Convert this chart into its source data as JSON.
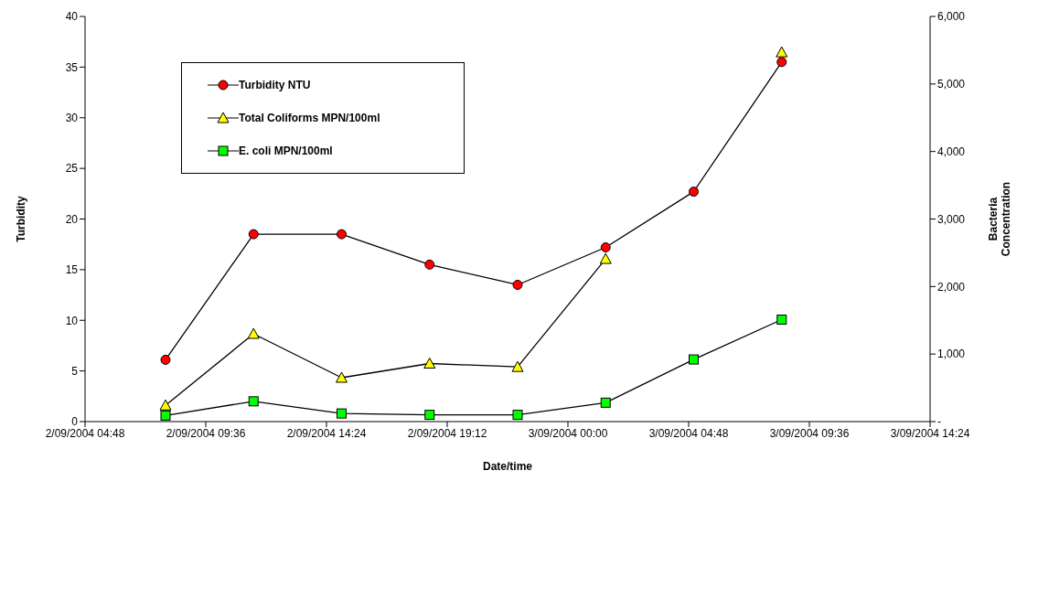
{
  "chart_data": {
    "type": "line",
    "xlabel": "Date/time",
    "ylabel": "Turbidity",
    "y2label": "Bacteria Concentration",
    "x": [
      "2004-09-02T08:00",
      "2004-09-02T11:30",
      "2004-09-02T15:00",
      "2004-09-02T18:30",
      "2004-09-02T22:00",
      "2004-09-03T01:30",
      "2004-09-03T05:00",
      "2004-09-03T08:30"
    ],
    "series": [
      {
        "name": "Turbidity NTU",
        "color": "#ff0000",
        "marker": "circle",
        "values": [
          6.1,
          18.5,
          18.5,
          15.5,
          13.5,
          17.2,
          22.7,
          35.5
        ]
      },
      {
        "name": "Total Coliforms MPN/100ml",
        "color": "#ffff00",
        "marker": "triangle",
        "axis": "y2",
        "values": [
          240,
          1300,
          650,
          860,
          810,
          2410,
          null,
          5470
        ]
      },
      {
        "name": "E. coli MPN/100ml",
        "color": "#00ff00",
        "marker": "square",
        "axis": "y2",
        "values": [
          90,
          300,
          120,
          100,
          100,
          280,
          920,
          1510
        ]
      }
    ],
    "xlim": [
      "2004-09-02T04:48",
      "2004-09-03T14:24"
    ],
    "xticks": [
      {
        "value": "2004-09-02T04:48",
        "label": "2/09/2004 04:48"
      },
      {
        "value": "2004-09-02T09:36",
        "label": "2/09/2004 09:36"
      },
      {
        "value": "2004-09-02T14:24",
        "label": "2/09/2004 14:24"
      },
      {
        "value": "2004-09-02T19:12",
        "label": "2/09/2004 19:12"
      },
      {
        "value": "2004-09-03T00:00",
        "label": "3/09/2004 00:00"
      },
      {
        "value": "2004-09-03T04:48",
        "label": "3/09/2004 04:48"
      },
      {
        "value": "2004-09-03T09:36",
        "label": "3/09/2004 09:36"
      },
      {
        "value": "2004-09-03T14:24",
        "label": "3/09/2004 14:24"
      }
    ],
    "ylim": [
      0,
      40
    ],
    "yticks": [
      0,
      5,
      10,
      15,
      20,
      25,
      30,
      35,
      40
    ],
    "y2lim": [
      0,
      6000
    ],
    "y2ticks": [
      {
        "value": 0,
        "label": "-"
      },
      {
        "value": 1000,
        "label": "1,000"
      },
      {
        "value": 2000,
        "label": "2,000"
      },
      {
        "value": 3000,
        "label": "3,000"
      },
      {
        "value": 4000,
        "label": "4,000"
      },
      {
        "value": 5000,
        "label": "5,000"
      },
      {
        "value": 6000,
        "label": "6,000"
      }
    ],
    "grid": false,
    "legend": "top left",
    "line_style": "solid"
  }
}
